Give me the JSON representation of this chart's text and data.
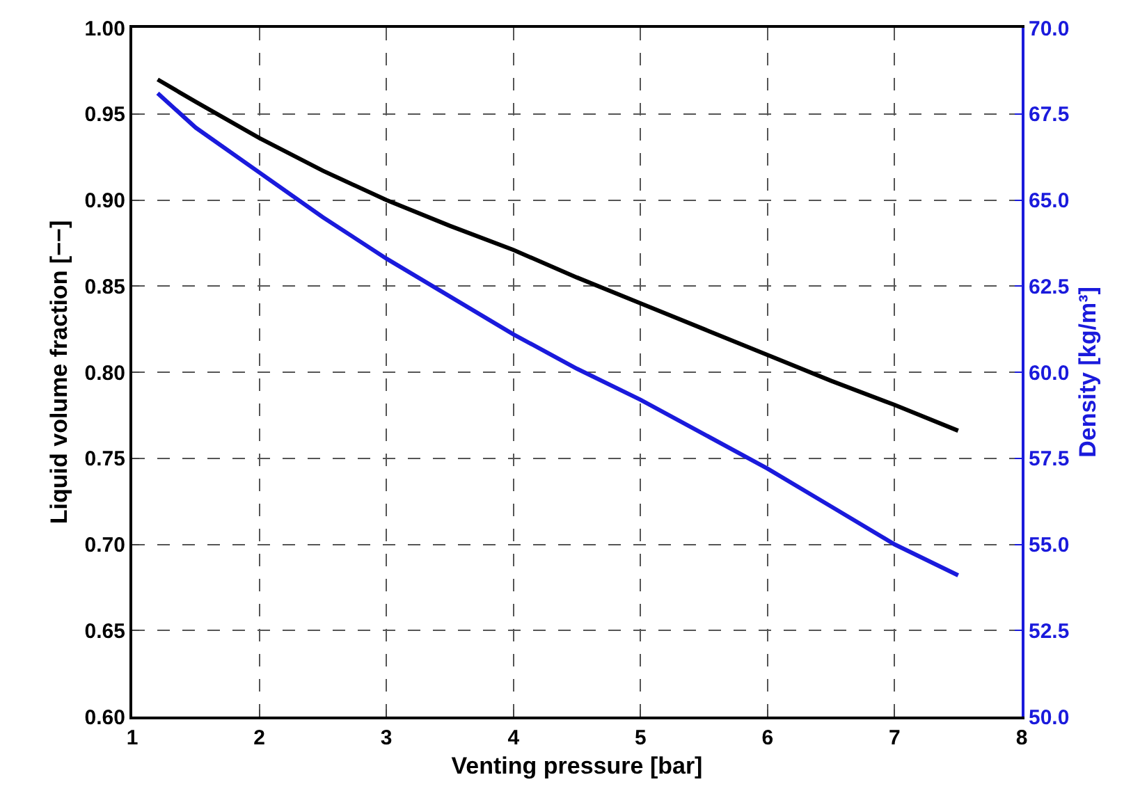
{
  "chart_data": {
    "type": "line",
    "xlabel": "Venting pressure [bar]",
    "ylabel": "Liquid volume fraction [−−]",
    "y2label": "Density [kg/m³]",
    "x": [
      1.2,
      1.5,
      2,
      2.5,
      3,
      3.5,
      4,
      4.5,
      5,
      5.5,
      6,
      6.5,
      7,
      7.5
    ],
    "series": [
      {
        "color": "#000000",
        "values": [
          0.97,
          0.957,
          0.936,
          0.917,
          0.9,
          0.885,
          0.871,
          0.855,
          0.84,
          0.825,
          0.81,
          0.795,
          0.781,
          0.766
        ]
      },
      {
        "color": "#1a1adc",
        "axis": "y2",
        "values": [
          68.1,
          67.1,
          65.8,
          64.5,
          63.3,
          62.2,
          61.1,
          60.1,
          59.2,
          58.2,
          57.2,
          56.1,
          55.0,
          54.1
        ]
      }
    ],
    "xlim": [
      1,
      8
    ],
    "xticks": [
      1,
      2,
      3,
      4,
      5,
      6,
      7,
      8
    ],
    "ylim": [
      0.6,
      1.0
    ],
    "yticks": [
      {
        "value": 0.6,
        "label": "0.60"
      },
      {
        "value": 0.65,
        "label": "0.65"
      },
      {
        "value": 0.7,
        "label": "0.70"
      },
      {
        "value": 0.75,
        "label": "0.75"
      },
      {
        "value": 0.8,
        "label": "0.80"
      },
      {
        "value": 0.85,
        "label": "0.85"
      },
      {
        "value": 0.9,
        "label": "0.90"
      },
      {
        "value": 0.95,
        "label": "0.95"
      },
      {
        "value": 1.0,
        "label": "1.00"
      }
    ],
    "y2lim": [
      50,
      70
    ],
    "y2ticks": [
      {
        "value": 50,
        "label": "50.0"
      },
      {
        "value": 52.5,
        "label": "52.5"
      },
      {
        "value": 55,
        "label": "55.0"
      },
      {
        "value": 57.5,
        "label": "57.5"
      },
      {
        "value": 60,
        "label": "60.0"
      },
      {
        "value": 62.5,
        "label": "62.5"
      },
      {
        "value": 65,
        "label": "65.0"
      },
      {
        "value": 67.5,
        "label": "67.5"
      },
      {
        "value": 70,
        "label": "70.0"
      }
    ],
    "grid": true,
    "line_style": "solid",
    "marker": "none"
  }
}
